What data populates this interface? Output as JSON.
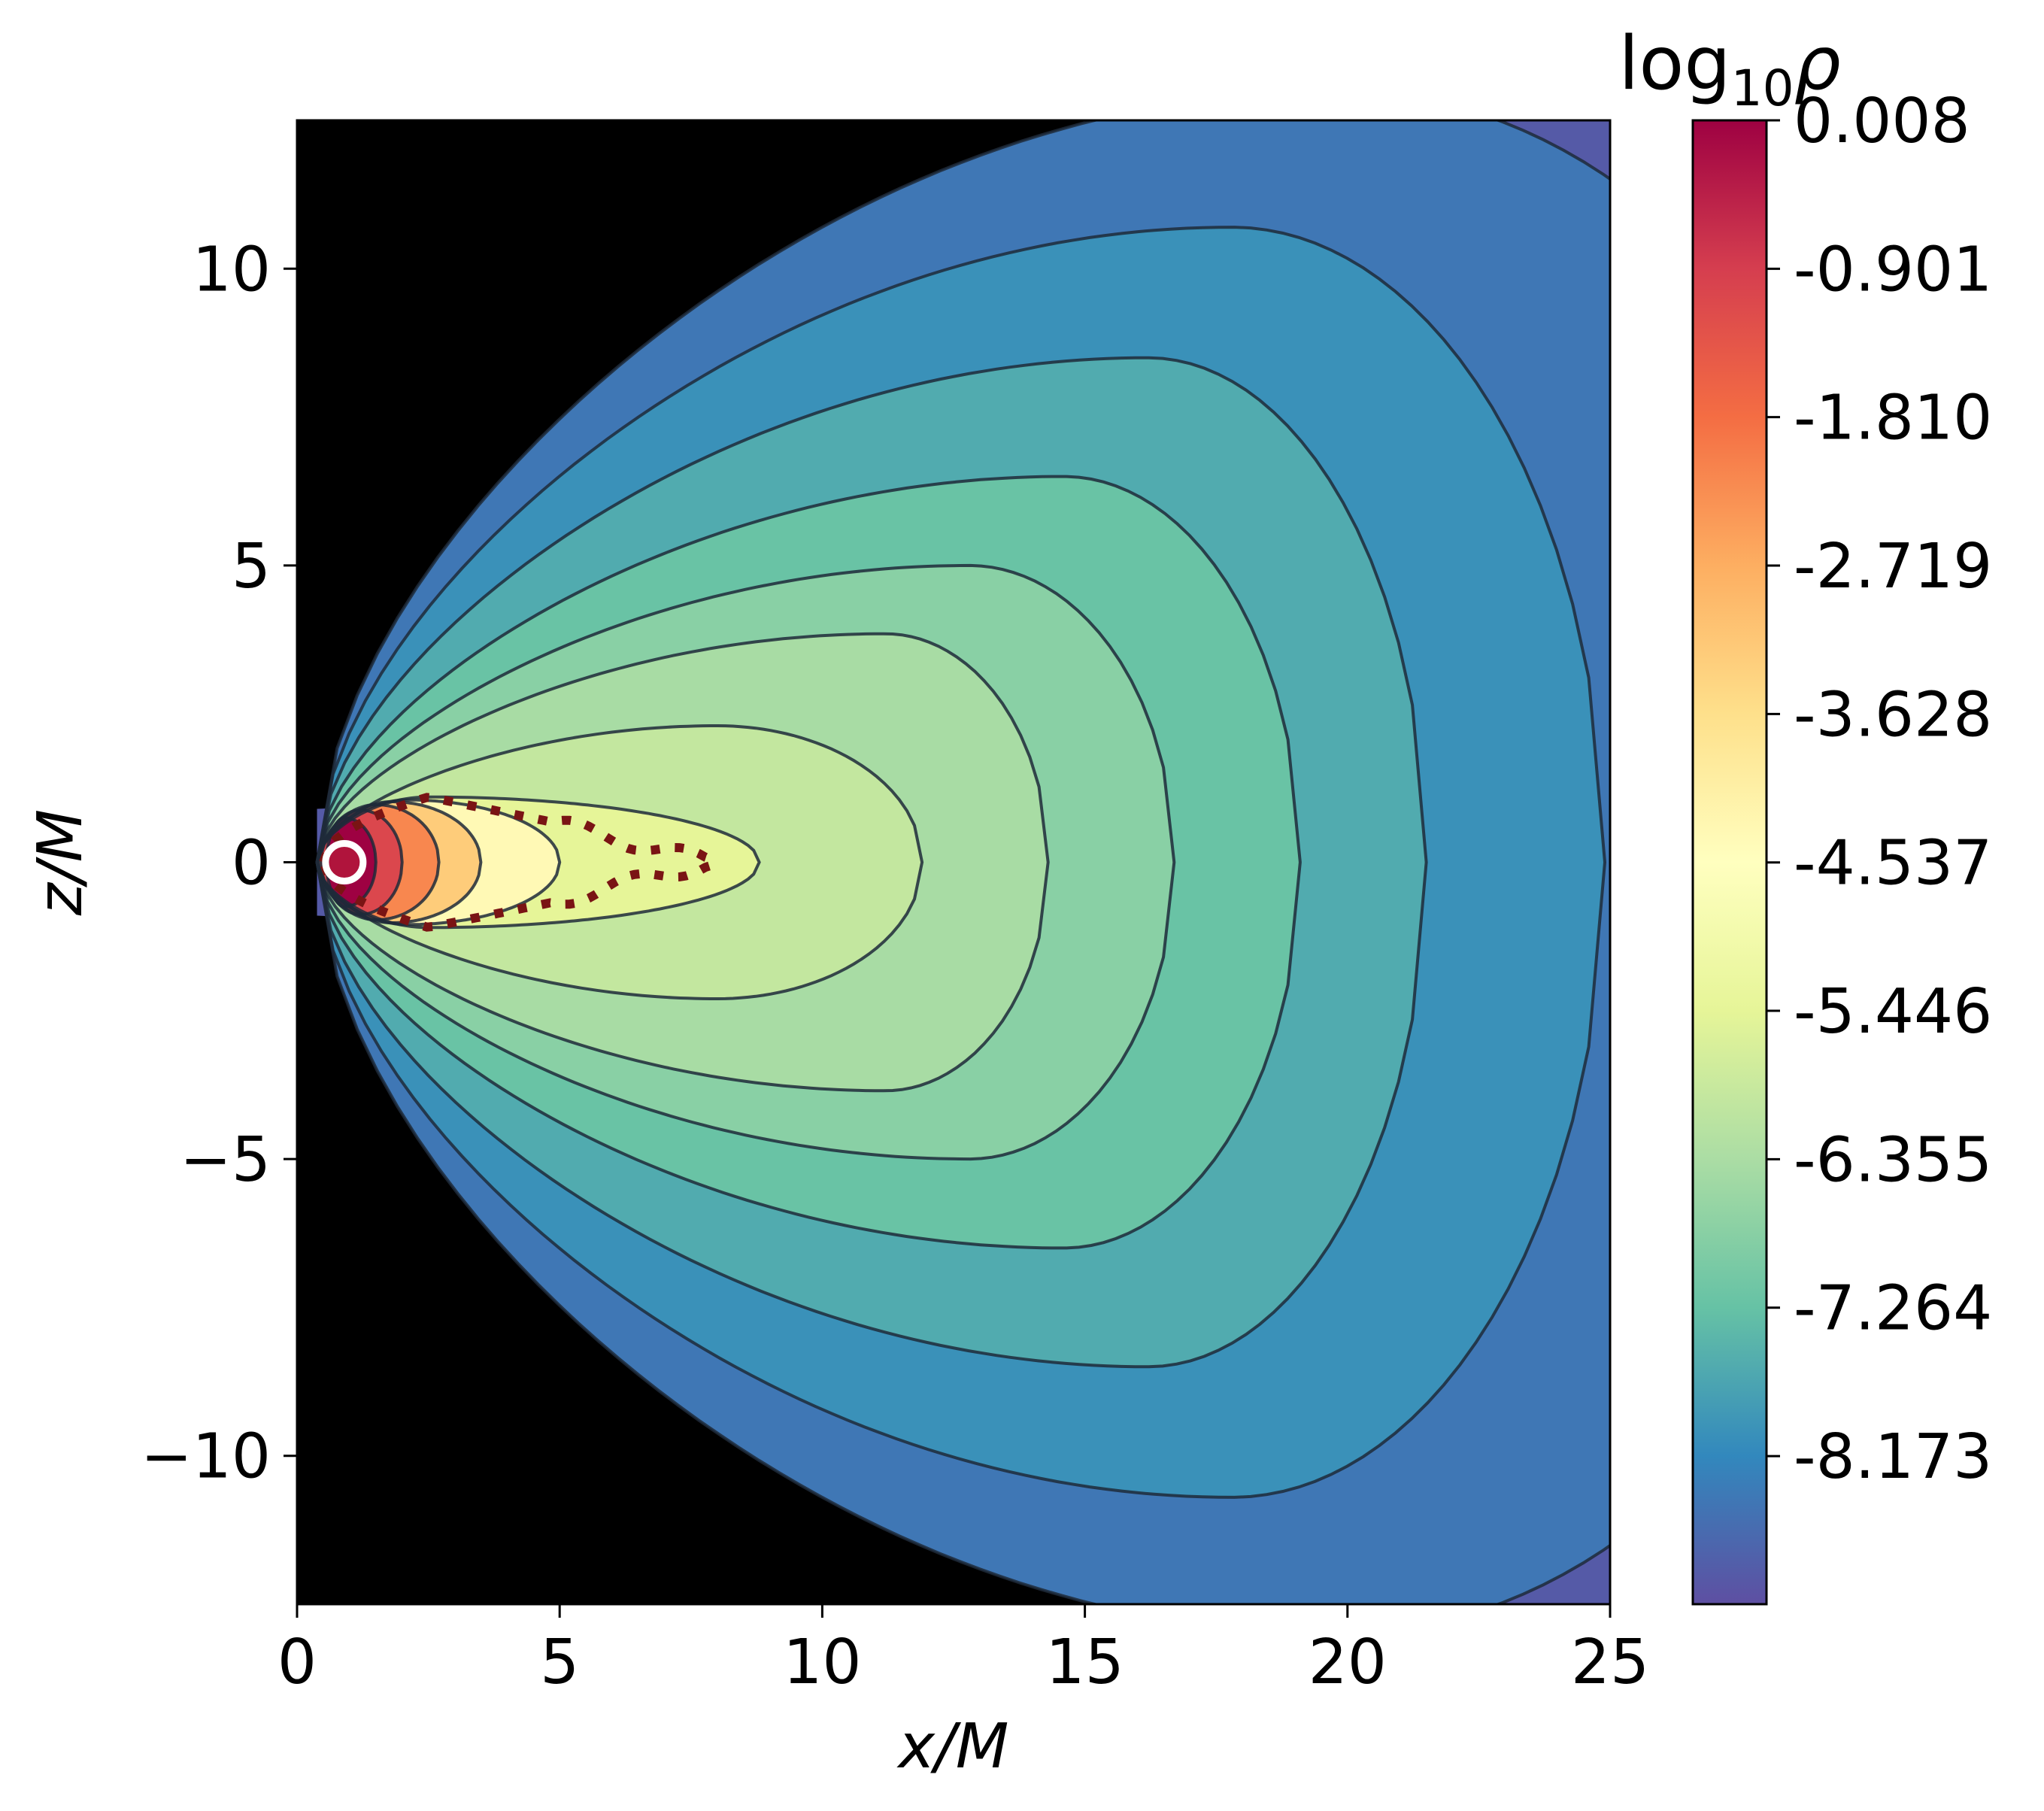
{
  "chart_data": {
    "type": "heatmap",
    "subtype": "filled-contour",
    "title": "",
    "xlabel": "x/M",
    "ylabel": "z/M",
    "xlim": [
      0,
      25
    ],
    "ylim": [
      -12.5,
      12.5
    ],
    "x_ticks": [
      "0",
      "5",
      "10",
      "15",
      "20",
      "25"
    ],
    "y_ticks": [
      "−10",
      "−5",
      "0",
      "5",
      "10"
    ],
    "x_tick_values": [
      0,
      5,
      10,
      15,
      20,
      25
    ],
    "y_tick_values": [
      -10,
      -5,
      0,
      5,
      10
    ],
    "grid": false,
    "background_color": "#000000",
    "colormap": "Spectral_r",
    "colorbar": {
      "label_main": "log",
      "label_sub": "10",
      "label_symbol": "ρ",
      "range": [
        -9.08,
        0.008
      ],
      "tick_values": [
        0.008,
        -0.901,
        -1.81,
        -2.719,
        -3.628,
        -4.537,
        -5.446,
        -6.355,
        -7.264,
        -8.173
      ],
      "tick_labels": [
        "0.008",
        "-0.901",
        "-1.810",
        "-2.719",
        "-3.628",
        "-4.537",
        "-5.446",
        "-6.355",
        "-7.264",
        "-8.173"
      ]
    },
    "density_max_location": {
      "x": 0.9,
      "z": 0
    },
    "contour_levels": [
      {
        "x_in": 0.55,
        "x_out": 1.5,
        "z_half": 0.75,
        "x_peak": 0.9
      },
      {
        "x_in": 0.45,
        "x_out": 2.0,
        "z_half": 0.88,
        "x_peak": 1.2
      },
      {
        "x_in": 0.4,
        "x_out": 2.7,
        "z_half": 0.97,
        "x_peak": 1.5
      },
      {
        "x_in": 0.38,
        "x_out": 3.5,
        "z_half": 1.02,
        "x_peak": 1.8
      },
      {
        "x_in": 0.38,
        "x_out": 5.0,
        "z_half": 1.05,
        "x_peak": 2.1
      },
      {
        "x_in": 0.38,
        "x_out": 8.8,
        "z_half": 1.1,
        "x_peak": 2.5
      },
      {
        "x_in": 0.38,
        "x_out": 11.9,
        "z_half": 2.3,
        "x_peak": 8.0
      },
      {
        "x_in": 0.38,
        "x_out": 14.3,
        "z_half": 3.85,
        "x_peak": 11.2
      },
      {
        "x_in": 0.38,
        "x_out": 16.7,
        "z_half": 5.0,
        "x_peak": 12.8
      },
      {
        "x_in": 0.38,
        "x_out": 19.1,
        "z_half": 6.5,
        "x_peak": 14.6
      },
      {
        "x_in": 0.38,
        "x_out": 21.5,
        "z_half": 8.5,
        "x_peak": 16.2
      },
      {
        "x_in": 0.38,
        "x_out": 24.9,
        "z_half": 10.7,
        "x_peak": 17.8
      },
      {
        "x_in": 0.38,
        "x_out": 31.0,
        "z_half": 13.0,
        "x_peak": 19.8
      }
    ],
    "disk_boundary": {
      "x_start": 0.5,
      "z_max": 1.1,
      "x_end": 7.9,
      "line_color": "#7a1414",
      "line_style": "dotted"
    },
    "marker": {
      "x": 0.9,
      "z": 0,
      "fill": "#b0143c",
      "ring": "#ffffff"
    }
  },
  "colors": {
    "spectral_r": [
      "#5e4fa2",
      "#3288bd",
      "#66c2a5",
      "#abdda4",
      "#e6f598",
      "#ffffbf",
      "#fee08b",
      "#fdae61",
      "#f46d43",
      "#d53e4f",
      "#9e0142"
    ],
    "contour_line": "#1f2a3a"
  }
}
